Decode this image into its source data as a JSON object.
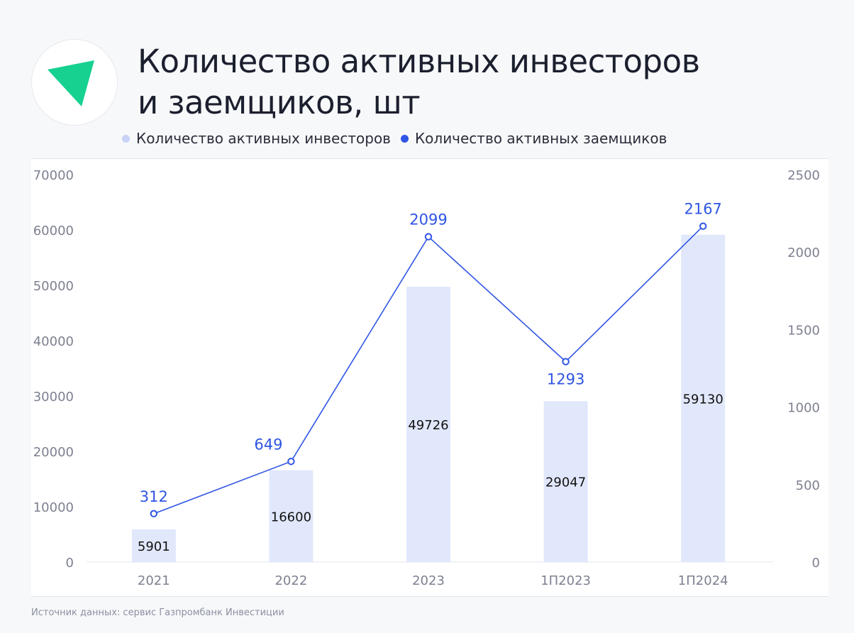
{
  "title_lines": [
    "Количество активных инвесторов",
    "и заемщиков, шт"
  ],
  "legend": [
    {
      "label": "Количество активных инвесторов",
      "color": "#c8d3f5"
    },
    {
      "label": "Количество активных заемщиков",
      "color": "#2f55e4"
    }
  ],
  "source": "Источник данных: сервис Газпромбанк Инвестиции",
  "colors": {
    "bar": "#e1e8fc",
    "line": "#2f55e4",
    "logo": "#16d18f",
    "axis_text": "#7d8090",
    "bar_label": "#111111"
  },
  "chart_data": {
    "type": "bar",
    "categories": [
      "2021",
      "2022",
      "2023",
      "1П2023",
      "1П2024"
    ],
    "series": [
      {
        "name": "Количество активных инвесторов",
        "type": "bar",
        "axis": "left",
        "values": [
          5901,
          16600,
          49726,
          29047,
          59130
        ],
        "labels": [
          "5901",
          "16600",
          "49726",
          "29047",
          "59130"
        ]
      },
      {
        "name": "Количество активных заемщиков",
        "type": "line",
        "axis": "right",
        "values": [
          312,
          649,
          2099,
          1293,
          2167
        ],
        "labels": [
          "312",
          "649",
          "2099",
          "1293",
          "2167"
        ]
      }
    ],
    "y_left": {
      "min": 0,
      "max": 70000,
      "ticks": [
        "0",
        "10000",
        "20000",
        "30000",
        "40000",
        "50000",
        "60000",
        "70000"
      ]
    },
    "y_right": {
      "min": 0,
      "max": 2500,
      "ticks": [
        "0",
        "500",
        "1000",
        "1500",
        "2000",
        "2500"
      ]
    },
    "grid": false,
    "legend_position": "top"
  }
}
